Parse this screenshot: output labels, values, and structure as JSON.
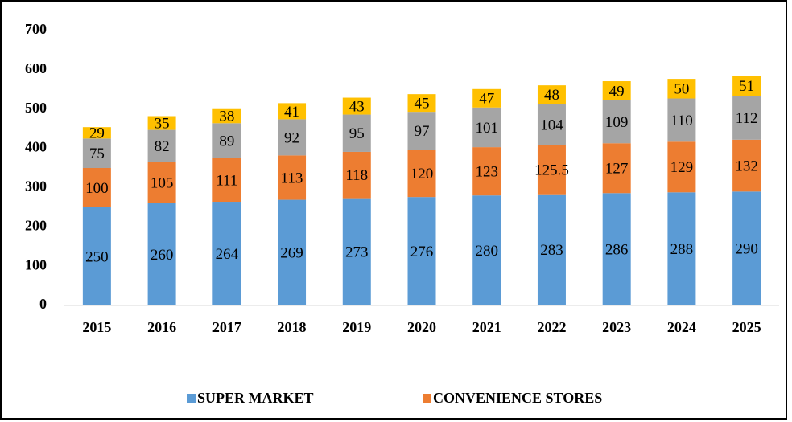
{
  "chart_data": {
    "type": "stacked_bar",
    "categories": [
      "2015",
      "2016",
      "2017",
      "2018",
      "2019",
      "2020",
      "2021",
      "2022",
      "2023",
      "2024",
      "2025"
    ],
    "series": [
      {
        "name": "SUPER MARKET",
        "color": "#5b9bd5",
        "values": [
          250,
          260,
          264,
          269,
          273,
          276,
          280,
          283,
          286,
          288,
          290
        ]
      },
      {
        "name": "CONVENIENCE STORES",
        "color": "#ed7d31",
        "values": [
          100,
          105,
          111,
          113,
          118,
          120,
          123,
          125.5,
          127,
          129,
          132
        ]
      },
      {
        "color": "#a5a5a5",
        "values": [
          75,
          82,
          89,
          92,
          95,
          97,
          101,
          104,
          109,
          110,
          112
        ]
      },
      {
        "color": "#ffc000",
        "values": [
          29,
          35,
          38,
          41,
          43,
          45,
          47,
          48,
          49,
          50,
          51
        ]
      }
    ],
    "ylim": [
      0,
      700
    ],
    "yticks": [
      0,
      100,
      200,
      300,
      400,
      500,
      600,
      700
    ],
    "grid": false
  }
}
